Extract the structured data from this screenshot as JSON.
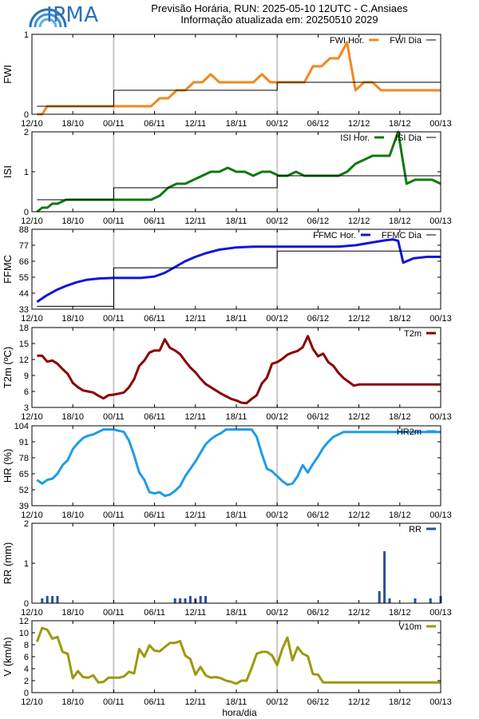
{
  "header": {
    "logo_text": "IPMA",
    "title_line1": "Previsão Horária, RUN: 2025-05-10 12UTC - C.Ansiaes",
    "title_line2": "Informação atualizada em: 20250510 2029"
  },
  "chart_data": [
    {
      "type": "line",
      "ylabel": "FWI",
      "ylim": [
        0,
        1
      ],
      "yticks": [
        0,
        1
      ],
      "ytick_labels": [
        "0",
        "1"
      ],
      "legend": [
        {
          "name": "FWI Hor.",
          "color": "#f5861f"
        },
        {
          "name": "FWI Dia",
          "color": "#000000"
        }
      ],
      "series": [
        {
          "name": "FWI Hor.",
          "color": "#f5861f",
          "style": "line",
          "x": [
            3,
            6,
            9,
            12,
            15,
            20,
            25,
            30,
            35,
            40,
            45,
            50,
            55,
            60,
            65,
            70,
            75,
            80,
            85,
            90,
            95,
            100,
            105,
            110,
            115,
            120,
            125,
            130,
            135,
            140,
            145,
            150,
            155,
            160,
            165,
            170,
            175,
            180,
            185,
            190,
            195,
            200,
            205,
            210,
            215,
            220,
            225,
            230,
            235,
            240
          ],
          "y": [
            0,
            0,
            0.1,
            0.1,
            0.1,
            0.1,
            0.1,
            0.1,
            0.1,
            0.1,
            0.1,
            0.1,
            0.1,
            0.1,
            0.1,
            0.1,
            0.2,
            0.2,
            0.3,
            0.3,
            0.4,
            0.4,
            0.5,
            0.4,
            0.4,
            0.4,
            0.4,
            0.4,
            0.5,
            0.4,
            0.4,
            0.4,
            0.4,
            0.4,
            0.6,
            0.6,
            0.7,
            0.7,
            0.9,
            0.3,
            0.4,
            0.4,
            0.3,
            0.3,
            0.3,
            0.3,
            0.3,
            0.3,
            0.3,
            0.3
          ]
        },
        {
          "name": "FWI Dia",
          "color": "#000000",
          "style": "step",
          "x": [
            3,
            48,
            48,
            144,
            144,
            240
          ],
          "y": [
            0.1,
            0.1,
            0.3,
            0.3,
            0.4,
            0.4
          ]
        }
      ],
      "vlines": [
        48,
        144
      ]
    },
    {
      "type": "line",
      "ylabel": "ISI",
      "ylim": [
        0,
        2
      ],
      "yticks": [
        0,
        1,
        2
      ],
      "ytick_labels": [
        "0",
        "1",
        "2"
      ],
      "legend": [
        {
          "name": "ISI Hor.",
          "color": "#0f7a0f"
        },
        {
          "name": "ISI Dia",
          "color": "#000000"
        }
      ],
      "series": [
        {
          "name": "ISI Hor.",
          "color": "#0f7a0f",
          "style": "line",
          "x": [
            3,
            6,
            9,
            12,
            15,
            20,
            25,
            30,
            40,
            50,
            60,
            70,
            75,
            80,
            85,
            90,
            95,
            100,
            105,
            110,
            115,
            120,
            125,
            130,
            135,
            140,
            145,
            150,
            155,
            160,
            165,
            170,
            175,
            180,
            185,
            190,
            195,
            200,
            205,
            210,
            215,
            220,
            225,
            230,
            235,
            240
          ],
          "y": [
            0,
            0.1,
            0.1,
            0.2,
            0.2,
            0.3,
            0.3,
            0.3,
            0.3,
            0.3,
            0.3,
            0.3,
            0.4,
            0.6,
            0.7,
            0.7,
            0.8,
            0.9,
            1.0,
            1.0,
            1.1,
            1.0,
            1.0,
            0.9,
            1.0,
            1.0,
            0.9,
            0.9,
            1.0,
            0.9,
            0.9,
            0.9,
            0.9,
            0.9,
            1.0,
            1.2,
            1.3,
            1.4,
            1.4,
            1.4,
            2.0,
            0.7,
            0.8,
            0.8,
            0.8,
            0.7
          ]
        },
        {
          "name": "ISI Dia",
          "color": "#000000",
          "style": "step",
          "x": [
            3,
            48,
            48,
            144,
            144,
            240
          ],
          "y": [
            0.3,
            0.3,
            0.6,
            0.6,
            0.9,
            0.9
          ]
        }
      ],
      "vlines": [
        48,
        144
      ]
    },
    {
      "type": "line",
      "ylabel": "FFMC",
      "ylim": [
        33,
        88
      ],
      "yticks": [
        33,
        44,
        55,
        66,
        77,
        88
      ],
      "ytick_labels": [
        "33",
        "44",
        "55",
        "66",
        "77",
        "88"
      ],
      "legend": [
        {
          "name": "FFMC Hor.",
          "color": "#1515d6"
        },
        {
          "name": "FFMC Dia",
          "color": "#000000"
        }
      ],
      "series": [
        {
          "name": "FFMC Hor.",
          "color": "#1515d6",
          "style": "line",
          "x": [
            3,
            8,
            14,
            20,
            26,
            32,
            40,
            48,
            56,
            64,
            72,
            78,
            84,
            90,
            96,
            102,
            110,
            120,
            130,
            140,
            150,
            160,
            170,
            180,
            190,
            200,
            208,
            212,
            215,
            218,
            224,
            232,
            240
          ],
          "y": [
            38,
            42,
            46,
            49,
            51.5,
            53.2,
            54.2,
            54.5,
            54.5,
            54.5,
            55.5,
            58,
            62,
            66,
            69,
            71.5,
            74,
            75.5,
            76,
            76,
            76,
            76,
            76,
            76,
            77,
            79,
            80.5,
            81,
            80,
            65,
            68,
            69,
            69
          ]
        },
        {
          "name": "FFMC Dia",
          "color": "#000000",
          "style": "step",
          "x": [
            3,
            48,
            48,
            144,
            144,
            240
          ],
          "y": [
            35,
            35,
            61.5,
            61.5,
            73,
            73
          ]
        }
      ],
      "vlines": [
        48,
        144
      ]
    },
    {
      "type": "line",
      "ylabel": "T2m (ºC)",
      "ylim": [
        3,
        18
      ],
      "yticks": [
        3,
        6,
        9,
        12,
        15,
        18
      ],
      "ytick_labels": [
        "3",
        "6",
        "9",
        "12",
        "15",
        "18"
      ],
      "legend": [
        {
          "name": "T2m",
          "color": "#8b0000"
        }
      ],
      "series": [
        {
          "name": "T2m",
          "color": "#8b0000",
          "style": "line",
          "x": [
            3,
            6,
            9,
            12,
            15,
            18,
            21,
            24,
            27,
            30,
            33,
            36,
            39,
            42,
            45,
            48,
            51,
            54,
            57,
            60,
            63,
            66,
            69,
            72,
            75,
            78,
            81,
            84,
            87,
            90,
            93,
            96,
            99,
            102,
            105,
            108,
            111,
            114,
            117,
            120,
            123,
            126,
            129,
            132,
            135,
            138,
            141,
            144,
            147,
            150,
            153,
            156,
            159,
            162,
            165,
            168,
            171,
            174,
            177,
            180,
            183,
            186,
            189,
            192,
            195,
            198,
            201,
            204,
            207,
            210,
            213,
            216,
            219,
            222,
            225,
            228,
            231,
            234,
            237,
            240
          ],
          "y": [
            12.7,
            12.7,
            11.6,
            11.8,
            11.2,
            10.2,
            9.3,
            7.6,
            6.8,
            6.2,
            6.0,
            5.8,
            5.2,
            4.7,
            5.3,
            5.4,
            5.6,
            5.8,
            6.8,
            8.3,
            10.8,
            11.8,
            13.3,
            13.7,
            13.7,
            15.8,
            14.2,
            13.7,
            13.0,
            11.7,
            10.5,
            9.6,
            8.4,
            7.4,
            6.8,
            6.2,
            5.6,
            5.1,
            4.6,
            4.3,
            3.9,
            3.8,
            4.6,
            5.3,
            7.5,
            8.6,
            11.2,
            11.5,
            12.1,
            12.9,
            13.3,
            13.6,
            14.3,
            16.4,
            14.0,
            12.6,
            13.1,
            11.5,
            10.8,
            9.5,
            8.5,
            7.8,
            7.1,
            7.3,
            7.3,
            7.3,
            7.3,
            7.3,
            7.3,
            7.3,
            7.3,
            7.3,
            7.3,
            7.3,
            7.3,
            7.3,
            7.3,
            7.3,
            7.3,
            7.3
          ]
        },
        {
          "name": "",
          "color": "none",
          "style": "none",
          "x": [],
          "y": []
        }
      ],
      "vlines": [
        48,
        144
      ]
    },
    {
      "type": "line",
      "ylabel": "HR (%)",
      "ylim": [
        39,
        104
      ],
      "yticks": [
        39,
        52,
        65,
        78,
        91,
        104
      ],
      "ytick_labels": [
        "39",
        "52",
        "65",
        "78",
        "91",
        "104"
      ],
      "legend": [
        {
          "name": "HR2m",
          "color": "#1e9ce8"
        }
      ],
      "series": [
        {
          "name": "HR2m",
          "color": "#1e9ce8",
          "style": "line",
          "x": [
            3,
            6,
            9,
            12,
            15,
            18,
            21,
            24,
            27,
            30,
            33,
            36,
            39,
            42,
            45,
            48,
            51,
            54,
            57,
            60,
            63,
            66,
            69,
            72,
            75,
            78,
            81,
            84,
            87,
            90,
            93,
            96,
            99,
            102,
            105,
            108,
            111,
            114,
            117,
            120,
            123,
            126,
            129,
            132,
            135,
            138,
            141,
            144,
            147,
            150,
            153,
            156,
            159,
            162,
            165,
            168,
            171,
            174,
            177,
            180,
            183,
            186,
            189,
            192,
            195,
            198,
            201,
            204,
            207,
            210,
            213,
            216,
            219,
            222,
            225,
            228,
            231,
            234,
            237,
            240
          ],
          "y": [
            60,
            57,
            60,
            61,
            65,
            72,
            76,
            85,
            90,
            94,
            96,
            97,
            99,
            101,
            101,
            101,
            100,
            99,
            92,
            80,
            66,
            60,
            50,
            49,
            50,
            47,
            48,
            51,
            55,
            63,
            69,
            75,
            82,
            89,
            93,
            96,
            98,
            101,
            101,
            101,
            101,
            101,
            101,
            95,
            81,
            69,
            67,
            63,
            59,
            56,
            57,
            63,
            72,
            66,
            73,
            79,
            86,
            91,
            95,
            97,
            99,
            99,
            99,
            99,
            99,
            99,
            99,
            99,
            99,
            99,
            99,
            99,
            99,
            99,
            99,
            99,
            99,
            99,
            99,
            99
          ]
        },
        {
          "name": "",
          "color": "none",
          "style": "none",
          "x": [],
          "y": []
        }
      ],
      "vlines": [
        48,
        144
      ]
    },
    {
      "type": "bar",
      "ylabel": "RR (mm)",
      "ylim": [
        0,
        2
      ],
      "yticks": [
        0,
        1,
        2
      ],
      "ytick_labels": [
        "0",
        "1",
        "2"
      ],
      "legend": [
        {
          "name": "RR",
          "color": "#2b4f9c"
        }
      ],
      "series": [
        {
          "name": "RR",
          "color": "#2b4f9c",
          "style": "bars",
          "x": [
            6,
            9,
            12,
            15,
            84,
            87,
            90,
            93,
            96,
            99,
            102,
            204,
            207,
            210,
            225,
            234,
            240
          ],
          "y": [
            0.12,
            0.18,
            0.18,
            0.18,
            0.12,
            0.12,
            0.12,
            0.18,
            0.12,
            0.18,
            0.18,
            0.3,
            1.3,
            0.12,
            0.12,
            0.12,
            0.18
          ]
        },
        {
          "name": "",
          "color": "none",
          "style": "none",
          "x": [],
          "y": []
        }
      ],
      "vlines": [
        48,
        144
      ]
    },
    {
      "type": "line",
      "ylabel": "V (km/h)",
      "ylim": [
        0,
        12
      ],
      "yticks": [
        0,
        2,
        4,
        6,
        8,
        10,
        12
      ],
      "ytick_labels": [
        "0",
        "2",
        "4",
        "6",
        "8",
        "10",
        "12"
      ],
      "legend": [
        {
          "name": "V10m",
          "color": "#9a9a10"
        }
      ],
      "series": [
        {
          "name": "V10m",
          "color": "#9a9a10",
          "style": "line",
          "x": [
            3,
            6,
            9,
            12,
            15,
            18,
            21,
            24,
            27,
            30,
            33,
            36,
            39,
            42,
            45,
            48,
            51,
            54,
            57,
            60,
            63,
            66,
            69,
            72,
            75,
            78,
            81,
            84,
            87,
            90,
            93,
            96,
            99,
            102,
            105,
            108,
            111,
            114,
            117,
            120,
            123,
            126,
            129,
            132,
            135,
            138,
            141,
            144,
            147,
            150,
            153,
            156,
            159,
            162,
            165,
            168,
            171,
            174,
            177,
            180,
            183,
            186,
            189,
            192,
            195,
            198,
            201,
            204,
            207,
            210,
            213,
            216,
            219,
            222,
            225,
            228,
            231,
            234,
            237,
            240
          ],
          "y": [
            8.5,
            10.8,
            10.5,
            9.0,
            9.3,
            6.8,
            6.5,
            2.4,
            3.6,
            2.6,
            2.5,
            2.9,
            1.7,
            1.8,
            2.5,
            2.5,
            2.5,
            2.7,
            3.5,
            3.2,
            7.3,
            6.0,
            7.9,
            7.0,
            6.9,
            7.6,
            8.3,
            8.3,
            8.6,
            6.2,
            5.6,
            3.0,
            4.3,
            2.9,
            2.5,
            2.6,
            2.4,
            2.0,
            1.8,
            1.5,
            2.0,
            2.0,
            4.1,
            6.5,
            6.8,
            6.8,
            6.2,
            4.6,
            7.3,
            9.2,
            5.4,
            7.6,
            6.5,
            6.1,
            3.1,
            3.0,
            1.7,
            1.7,
            1.7,
            1.7,
            1.7,
            1.7,
            1.7,
            1.7,
            1.7,
            1.7,
            1.7,
            1.7,
            1.7,
            1.7,
            1.7,
            1.7,
            1.7,
            1.7,
            1.7,
            1.7,
            1.7,
            1.7,
            1.7,
            1.7
          ]
        },
        {
          "name": "",
          "color": "none",
          "style": "none",
          "x": [],
          "y": []
        }
      ],
      "vlines": [
        48,
        144
      ]
    }
  ],
  "x_axis": {
    "label": "hora/dia",
    "range": [
      0,
      240
    ],
    "ticks": [
      0,
      24,
      48,
      72,
      96,
      120,
      144,
      168,
      192,
      216,
      240
    ],
    "tick_labels": [
      "12/10",
      "18/10",
      "00/11",
      "06/11",
      "12/11",
      "18/11",
      "00/12",
      "06/12",
      "12/12",
      "18/12",
      "00/13"
    ]
  },
  "colors": {
    "vline": "#c8c8c8",
    "frame": "#000000"
  }
}
